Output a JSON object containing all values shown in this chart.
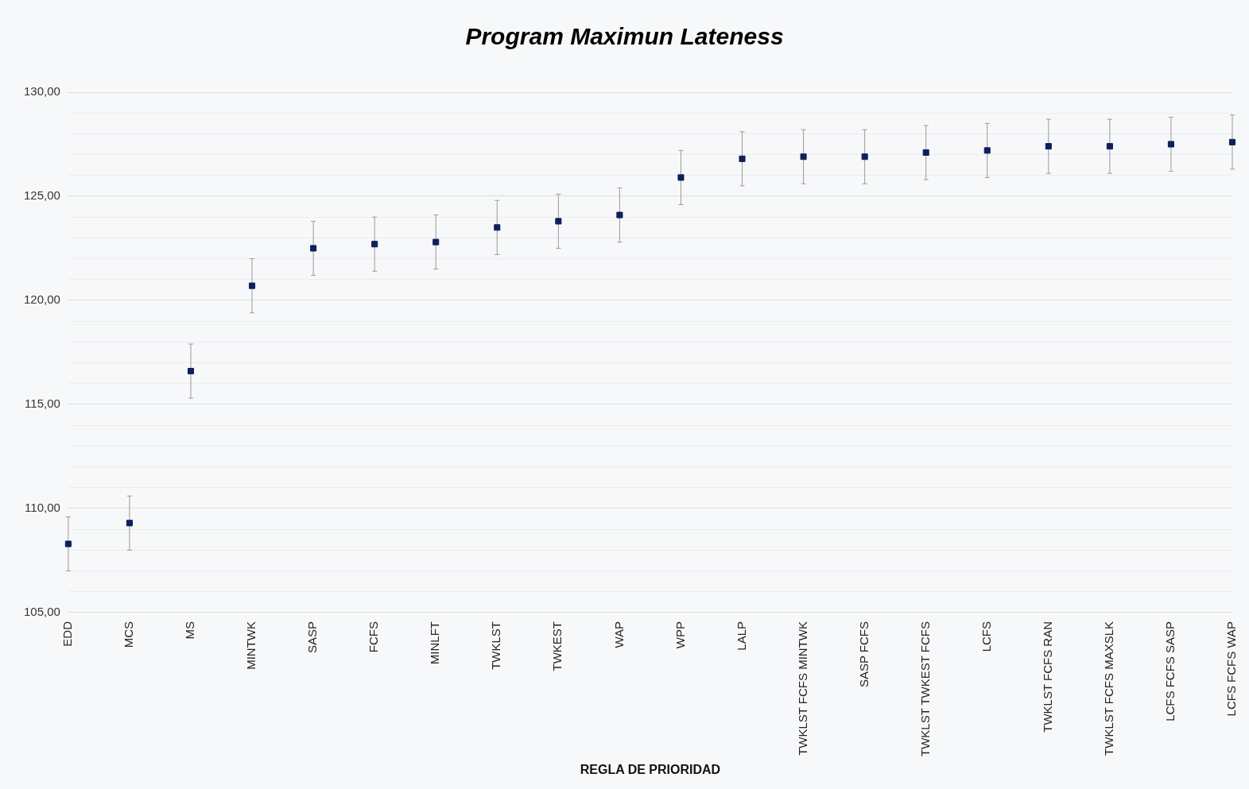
{
  "chart_data": {
    "type": "scatter",
    "title": "Program Maximun Lateness",
    "xlabel": "REGLA DE PRIORIDAD",
    "categories": [
      "EDD",
      "MCS",
      "MS",
      "MINTWK",
      "SASP",
      "FCFS",
      "MINLFT",
      "TWKLST",
      "TWKEST",
      "WAP",
      "WPP",
      "LALP",
      "TWKLST FCFS MINTWK",
      "SASP FCFS",
      "TWKLST TWKEST FCFS",
      "LCFS",
      "TWKLST FCFS RAN",
      "TWKLST FCFS MAXSLK",
      "LCFS FCFS SASP",
      "LCFS FCFS WAP"
    ],
    "values": [
      108.3,
      109.3,
      116.6,
      120.7,
      122.5,
      122.7,
      122.8,
      123.5,
      123.8,
      124.1,
      125.9,
      126.8,
      126.9,
      126.9,
      127.1,
      127.2,
      127.4,
      127.4,
      127.5,
      127.6
    ],
    "errors": [
      1.3,
      1.3,
      1.3,
      1.3,
      1.3,
      1.3,
      1.3,
      1.3,
      1.3,
      1.3,
      1.3,
      1.3,
      1.3,
      1.3,
      1.3,
      1.3,
      1.3,
      1.3,
      1.3,
      1.3
    ],
    "color": "#0d1f5c",
    "marker": "square",
    "grid": "y",
    "legend": false,
    "ylim": [
      105,
      130
    ],
    "yticks": [
      {
        "value": 105,
        "label": "105,00"
      },
      {
        "value": 106,
        "label": null
      },
      {
        "value": 107,
        "label": null
      },
      {
        "value": 108,
        "label": null
      },
      {
        "value": 109,
        "label": null
      },
      {
        "value": 110,
        "label": "110,00"
      },
      {
        "value": 111,
        "label": null
      },
      {
        "value": 112,
        "label": null
      },
      {
        "value": 113,
        "label": null
      },
      {
        "value": 114,
        "label": null
      },
      {
        "value": 115,
        "label": "115,00"
      },
      {
        "value": 116,
        "label": null
      },
      {
        "value": 117,
        "label": null
      },
      {
        "value": 118,
        "label": null
      },
      {
        "value": 119,
        "label": null
      },
      {
        "value": 120,
        "label": "120,00"
      },
      {
        "value": 121,
        "label": null
      },
      {
        "value": 122,
        "label": null
      },
      {
        "value": 123,
        "label": null
      },
      {
        "value": 124,
        "label": null
      },
      {
        "value": 125,
        "label": "125,00"
      },
      {
        "value": 126,
        "label": null
      },
      {
        "value": 127,
        "label": null
      },
      {
        "value": 128,
        "label": null
      },
      {
        "value": 129,
        "label": null
      },
      {
        "value": 130,
        "label": "130,00"
      }
    ]
  }
}
